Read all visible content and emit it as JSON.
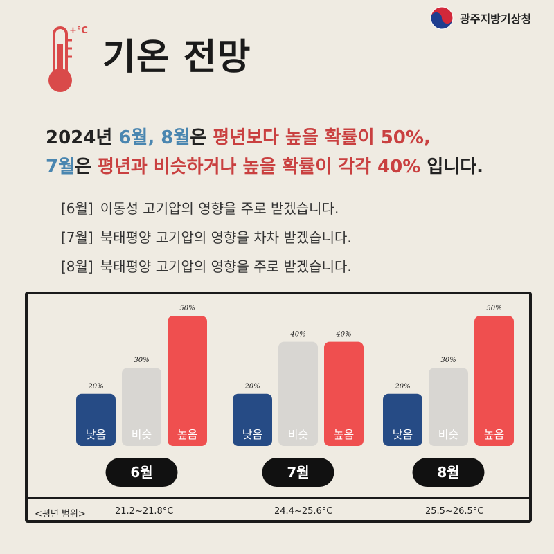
{
  "header": {
    "org_name": "광주지방기상청",
    "title": "기온 전망",
    "thermo_mark": "+°C"
  },
  "headline": {
    "line1": [
      {
        "text": "2024년 ",
        "style": "dark"
      },
      {
        "text": "6월, 8월",
        "style": "blue"
      },
      {
        "text": "은 ",
        "style": "dark"
      },
      {
        "text": "평년보다 높을 확률이 50%,",
        "style": "red"
      }
    ],
    "line2": [
      {
        "text": "7월",
        "style": "blue"
      },
      {
        "text": "은 ",
        "style": "dark"
      },
      {
        "text": "평년과 비슷하거나 높을 확률이 각각 40%",
        "style": "red"
      },
      {
        "text": " 입니다.",
        "style": "dark"
      }
    ]
  },
  "notes": [
    {
      "tag": "[6월]",
      "text": "이동성 고기압의 영향을 주로 받겠습니다."
    },
    {
      "tag": "[7월]",
      "text": "북태평양 고기압의 영향을 차차 받겠습니다."
    },
    {
      "tag": "[8월]",
      "text": "북태평양 고기압의 영향을 주로 받겠습니다."
    }
  ],
  "chart_data": {
    "type": "bar",
    "categories": [
      "낮음",
      "비슷",
      "높음"
    ],
    "colors": {
      "낮음": "#264b85",
      "비슷": "#d8d6d2",
      "높음": "#ef4f4f"
    },
    "groups": [
      {
        "month": "6월",
        "values": [
          20,
          30,
          50
        ],
        "labels": [
          "20%",
          "30%",
          "50%"
        ]
      },
      {
        "month": "7월",
        "values": [
          20,
          40,
          40
        ],
        "labels": [
          "20%",
          "40%",
          "40%"
        ]
      },
      {
        "month": "8월",
        "values": [
          20,
          30,
          50
        ],
        "labels": [
          "20%",
          "30%",
          "50%"
        ]
      }
    ],
    "ylim": [
      0,
      50
    ]
  },
  "normal_range": {
    "label": "<평년 범위>",
    "values": [
      "21.2~21.8°C",
      "24.4~25.6°C",
      "25.5~26.5°C"
    ]
  }
}
